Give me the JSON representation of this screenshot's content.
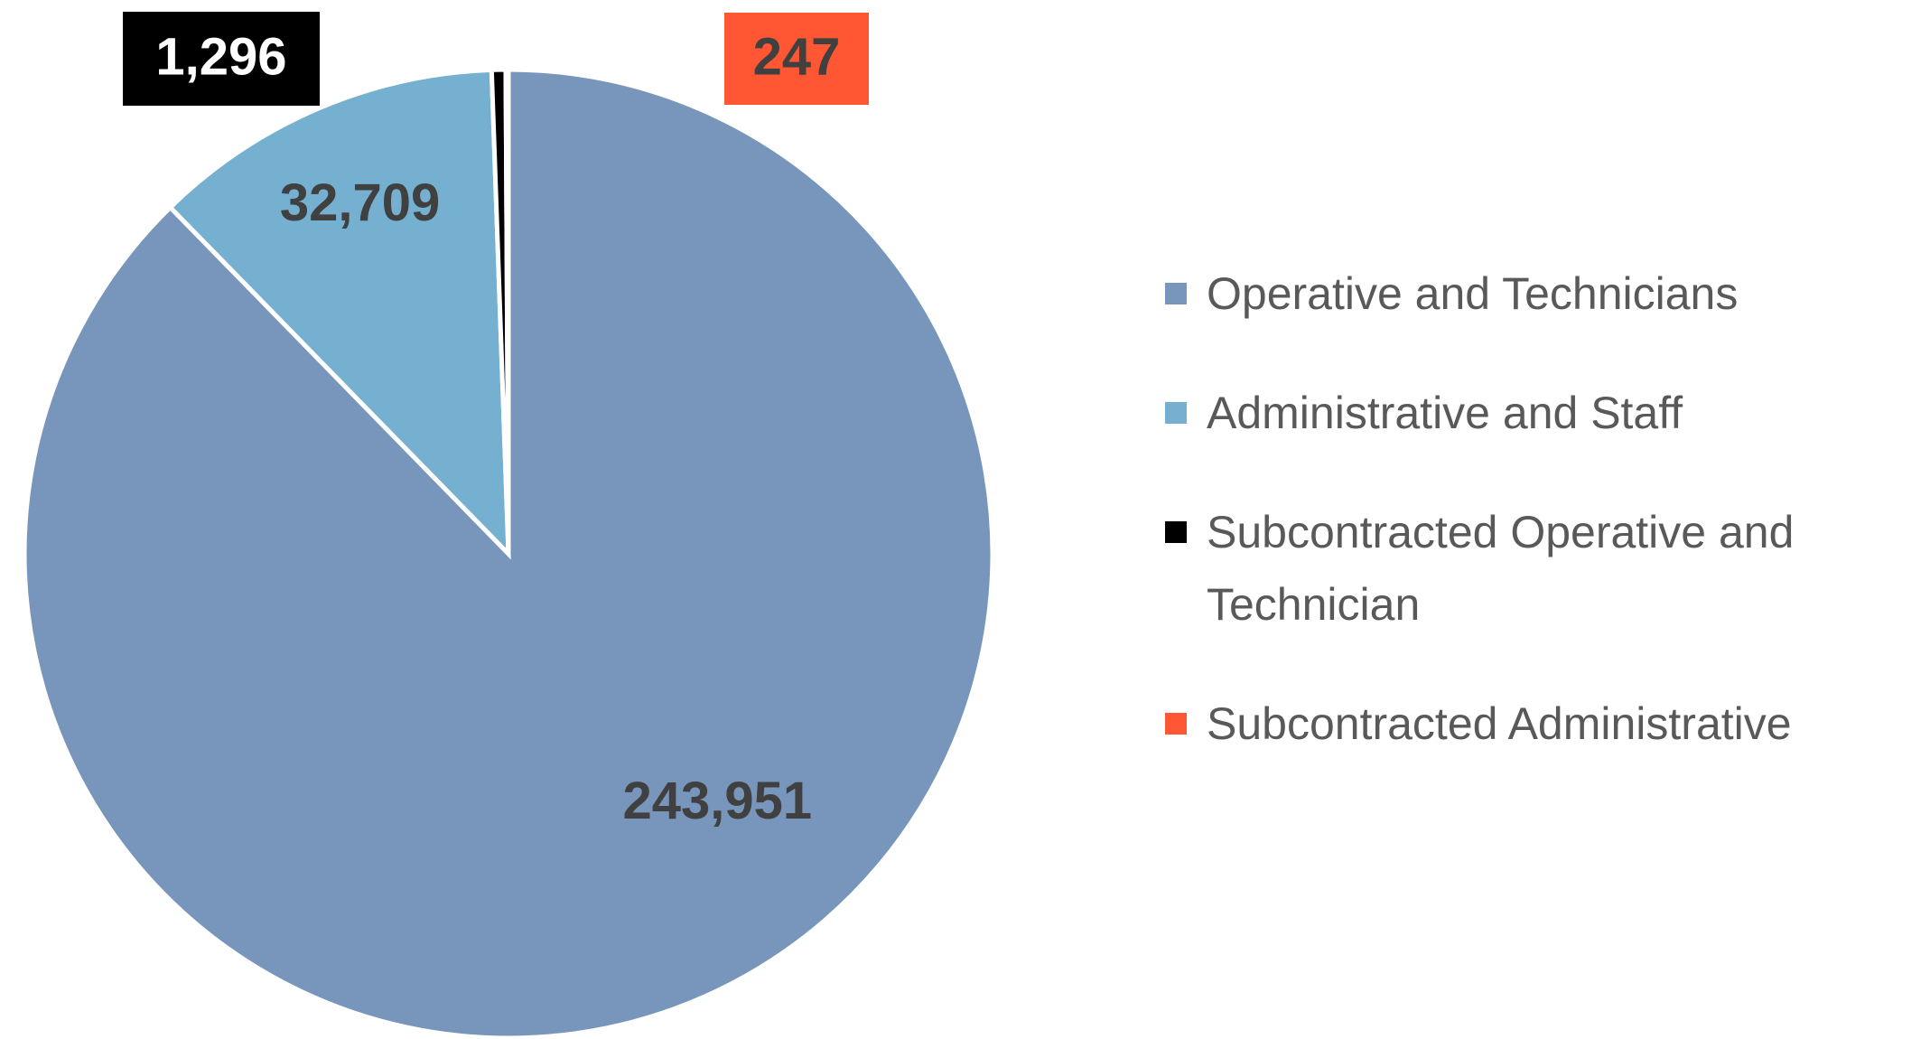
{
  "chart_data": {
    "type": "pie",
    "categories": [
      "Operative and Technicians",
      "Administrative and Staff",
      "Subcontracted Operative and Technician",
      "Subcontracted Administrative"
    ],
    "values": [
      243951,
      32709,
      1296,
      247
    ],
    "value_labels": [
      "243,951",
      "32,709",
      "1,296",
      "247"
    ],
    "colors": [
      "#7896bb",
      "#75b0d0",
      "#000000",
      "#ff5733"
    ],
    "legend": "right"
  }
}
